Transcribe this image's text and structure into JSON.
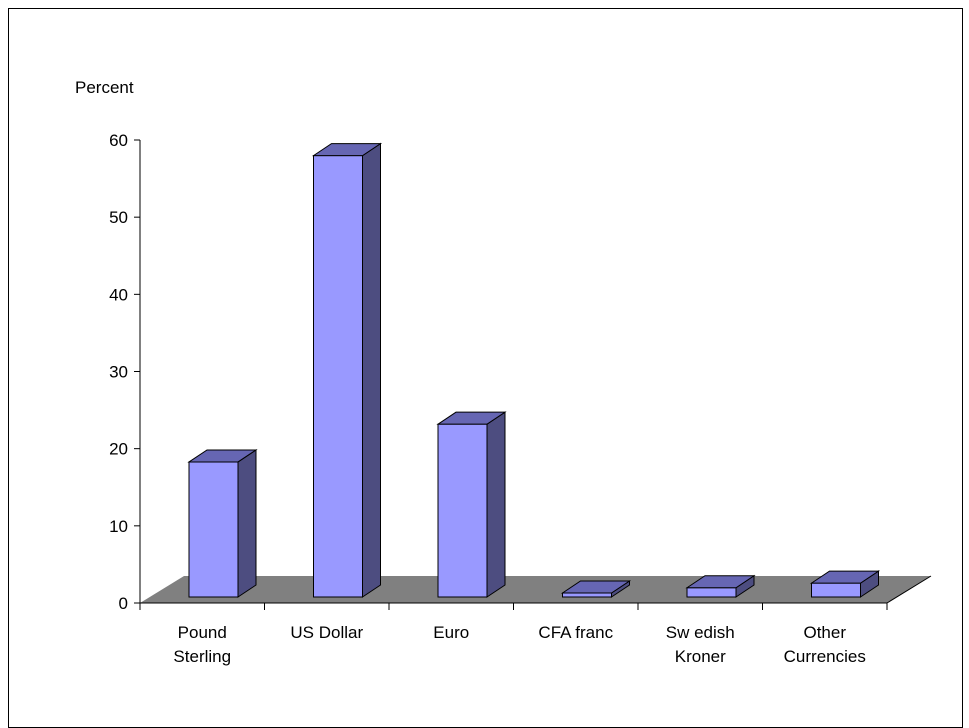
{
  "chart_data": {
    "type": "bar",
    "ylabel": "Percent",
    "ylim": [
      0,
      60
    ],
    "yticks": [
      "0",
      "10",
      "20",
      "30",
      "40",
      "50",
      "60"
    ],
    "categories": [
      [
        "Pound",
        "Sterling"
      ],
      [
        "US Dollar"
      ],
      [
        "Euro"
      ],
      [
        "CFA franc"
      ],
      [
        "Sw edish",
        "Kroner"
      ],
      [
        "Other",
        "Currencies"
      ]
    ],
    "values": [
      17.5,
      57.2,
      22.4,
      0.5,
      1.2,
      1.8
    ],
    "grid": false,
    "legend": "none",
    "three_d": true
  },
  "colors": {
    "bar_front": "#9999ff",
    "bar_side": "#4d4d80",
    "bar_top": "#6666b3",
    "floor": "#808080",
    "axis": "#000000"
  }
}
